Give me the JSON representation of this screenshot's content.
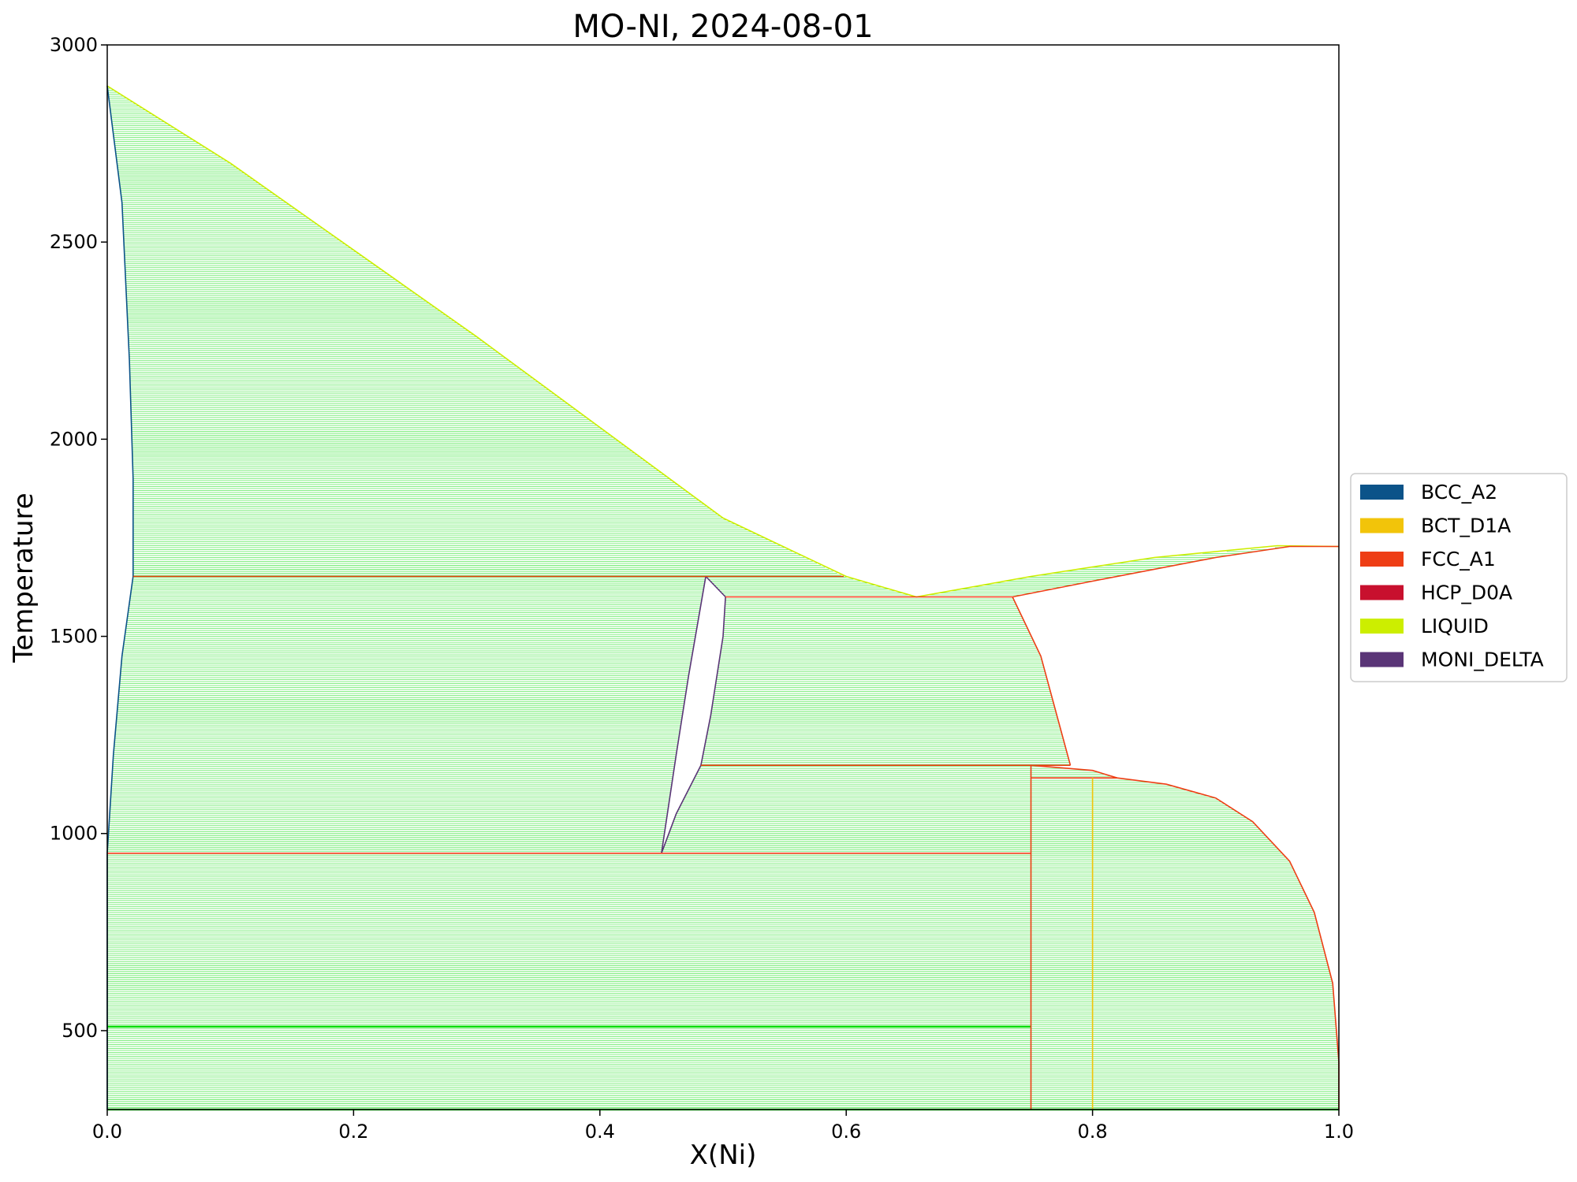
{
  "chart_data": {
    "type": "line",
    "title": "MO-NI, 2024-08-01",
    "xlabel": "X(Ni)",
    "ylabel": "Temperature",
    "xlim": [
      0.0,
      1.0
    ],
    "ylim": [
      300,
      3000
    ],
    "xticks": [
      0.0,
      0.2,
      0.4,
      0.6,
      0.8,
      1.0
    ],
    "xtick_labels": [
      "0.0",
      "0.2",
      "0.4",
      "0.6",
      "0.8",
      "1.0"
    ],
    "yticks": [
      500,
      1000,
      1500,
      2000,
      2500,
      3000
    ],
    "ytick_labels": [
      "500",
      "1000",
      "1500",
      "2000",
      "2500",
      "3000"
    ],
    "grid": false,
    "legend_position": "center-right, outside plot",
    "legend": [
      {
        "name": "BCC_A2",
        "color": "#0b5389"
      },
      {
        "name": "BCT_D1A",
        "color": "#f2c40a"
      },
      {
        "name": "FCC_A1",
        "color": "#ee3e15"
      },
      {
        "name": "HCP_D0A",
        "color": "#c8102e"
      },
      {
        "name": "LIQUID",
        "color": "#ccee00"
      },
      {
        "name": "MONI_DELTA",
        "color": "#5a3577"
      }
    ],
    "tieline_color": "#00dd00",
    "boundaries": [
      {
        "phase": "LIQUID",
        "color": "#ccee00",
        "points": [
          [
            0.0,
            2896
          ],
          [
            0.1,
            2700
          ],
          [
            0.2,
            2480
          ],
          [
            0.3,
            2260
          ],
          [
            0.4,
            2030
          ],
          [
            0.5,
            1800
          ],
          [
            0.6,
            1652
          ],
          [
            0.657,
            1600
          ],
          [
            0.75,
            1652
          ],
          [
            0.85,
            1700
          ],
          [
            0.95,
            1730
          ],
          [
            1.0,
            1728
          ]
        ]
      },
      {
        "phase": "BCC_A2",
        "color": "#0b5389",
        "points": [
          [
            0.0,
            2896
          ],
          [
            0.012,
            2600
          ],
          [
            0.018,
            2200
          ],
          [
            0.021,
            1900
          ],
          [
            0.021,
            1652
          ],
          [
            0.012,
            1450
          ],
          [
            0.005,
            1200
          ],
          [
            0.0,
            950
          ],
          [
            0.0,
            300
          ]
        ]
      },
      {
        "phase": "FCC_A1",
        "color": "#ee3e15",
        "points": [
          [
            0.735,
            1600
          ],
          [
            0.758,
            1450
          ],
          [
            0.782,
            1173
          ]
        ]
      },
      {
        "phase": "FCC_A1",
        "color": "#ee3e15",
        "points": [
          [
            0.735,
            1600
          ],
          [
            0.8,
            1640
          ],
          [
            0.9,
            1700
          ],
          [
            0.96,
            1728
          ],
          [
            1.0,
            1728
          ]
        ]
      },
      {
        "phase": "FCC_A1",
        "color": "#ee3e15",
        "points": [
          [
            0.75,
            1173
          ],
          [
            0.8,
            1160
          ],
          [
            0.82,
            1141
          ],
          [
            0.86,
            1125
          ],
          [
            0.9,
            1090
          ],
          [
            0.93,
            1030
          ],
          [
            0.96,
            930
          ],
          [
            0.98,
            800
          ],
          [
            0.995,
            620
          ],
          [
            1.0,
            420
          ],
          [
            1.0,
            300
          ]
        ]
      },
      {
        "phase": "MONI_DELTA",
        "color": "#5a3577",
        "points": [
          [
            0.486,
            1652
          ],
          [
            0.502,
            1600
          ],
          [
            0.5,
            1500
          ],
          [
            0.49,
            1300
          ],
          [
            0.482,
            1173
          ]
        ]
      },
      {
        "phase": "MONI_DELTA",
        "color": "#5a3577",
        "points": [
          [
            0.486,
            1652
          ],
          [
            0.472,
            1400
          ],
          [
            0.462,
            1200
          ],
          [
            0.45,
            950
          ]
        ]
      },
      {
        "phase": "MONI_DELTA",
        "color": "#5a3577",
        "points": [
          [
            0.45,
            950
          ],
          [
            0.462,
            1050
          ],
          [
            0.482,
            1173
          ]
        ]
      },
      {
        "phase": "FCC_A1",
        "color": "#ee3e15",
        "points": [
          [
            0.021,
            1652
          ],
          [
            0.598,
            1652
          ]
        ]
      },
      {
        "phase": "FCC_A1",
        "color": "#ee3e15",
        "points": [
          [
            0.502,
            1600
          ],
          [
            0.735,
            1600
          ]
        ]
      },
      {
        "phase": "FCC_A1",
        "color": "#ee3e15",
        "points": [
          [
            0.482,
            1173
          ],
          [
            0.782,
            1173
          ]
        ]
      },
      {
        "phase": "FCC_A1",
        "color": "#ee3e15",
        "points": [
          [
            0.75,
            1141
          ],
          [
            0.82,
            1141
          ]
        ]
      },
      {
        "phase": "FCC_A1",
        "color": "#ee3e15",
        "points": [
          [
            0.0,
            950
          ],
          [
            0.75,
            950
          ]
        ]
      },
      {
        "phase": "FCC_A1",
        "color": "#ee3e15",
        "points": [
          [
            0.75,
            300
          ],
          [
            0.75,
            1173
          ]
        ]
      },
      {
        "phase": "BCT_D1A",
        "color": "#f2c40a",
        "points": [
          [
            0.8,
            300
          ],
          [
            0.8,
            1141
          ]
        ]
      }
    ],
    "tieline_regions": [
      {
        "name": "bcc+liquid",
        "t_min": 1652,
        "t_max": 2896,
        "left": [
          [
            1652,
            0.021
          ],
          [
            1900,
            0.021
          ],
          [
            2200,
            0.018
          ],
          [
            2600,
            0.012
          ],
          [
            2896,
            0.0
          ]
        ],
        "right": [
          [
            1652,
            0.598
          ],
          [
            1800,
            0.5
          ],
          [
            2030,
            0.4
          ],
          [
            2260,
            0.3
          ],
          [
            2480,
            0.2
          ],
          [
            2700,
            0.1
          ],
          [
            2896,
            0.0
          ]
        ]
      },
      {
        "name": "bcc+delta upper",
        "t_min": 950,
        "t_max": 1652,
        "left": [
          [
            950,
            0.0
          ],
          [
            1200,
            0.005
          ],
          [
            1450,
            0.012
          ],
          [
            1652,
            0.021
          ]
        ],
        "right": [
          [
            950,
            0.45
          ],
          [
            1200,
            0.462
          ],
          [
            1400,
            0.472
          ],
          [
            1652,
            0.486
          ]
        ]
      },
      {
        "name": "bcc+delta lower",
        "t_min": 300,
        "t_max": 950,
        "left": [
          [
            300,
            0.0
          ],
          [
            950,
            0.0
          ]
        ],
        "right": [
          [
            300,
            0.75
          ],
          [
            950,
            0.75
          ]
        ]
      },
      {
        "name": "delta+liquid",
        "t_min": 1600,
        "t_max": 1652,
        "left": [
          [
            1600,
            0.502
          ],
          [
            1652,
            0.486
          ]
        ],
        "right": [
          [
            1600,
            0.657
          ],
          [
            1652,
            0.598
          ]
        ]
      },
      {
        "name": "delta+fcc",
        "t_min": 1173,
        "t_max": 1600,
        "left": [
          [
            1173,
            0.482
          ],
          [
            1300,
            0.49
          ],
          [
            1500,
            0.5
          ],
          [
            1600,
            0.502
          ]
        ],
        "right": [
          [
            1173,
            0.782
          ],
          [
            1450,
            0.758
          ],
          [
            1600,
            0.735
          ]
        ]
      },
      {
        "name": "liquid+fcc",
        "t_min": 1600,
        "t_max": 1728,
        "left": [
          [
            1600,
            0.657
          ],
          [
            1652,
            0.75
          ],
          [
            1700,
            0.85
          ],
          [
            1728,
            0.96
          ]
        ],
        "right": [
          [
            1600,
            0.735
          ],
          [
            1640,
            0.8
          ],
          [
            1700,
            0.9
          ],
          [
            1728,
            0.96
          ]
        ]
      },
      {
        "name": "delta+ni3mo",
        "t_min": 950,
        "t_max": 1173,
        "left": [
          [
            950,
            0.45
          ],
          [
            1050,
            0.462
          ],
          [
            1173,
            0.482
          ]
        ],
        "right": [
          [
            950,
            0.75
          ],
          [
            1173,
            0.75
          ]
        ]
      },
      {
        "name": "ni3mo+fcc upper",
        "t_min": 1141,
        "t_max": 1173,
        "left": [
          [
            1141,
            0.75
          ],
          [
            1173,
            0.75
          ]
        ],
        "right": [
          [
            1141,
            0.82
          ],
          [
            1160,
            0.8
          ],
          [
            1173,
            0.75
          ]
        ]
      },
      {
        "name": "ni4mo+fcc",
        "t_min": 300,
        "t_max": 1141,
        "left": [
          [
            300,
            0.75
          ],
          [
            1141,
            0.75
          ]
        ],
        "right": [
          [
            300,
            1.0
          ],
          [
            420,
            1.0
          ],
          [
            620,
            0.995
          ],
          [
            800,
            0.98
          ],
          [
            930,
            0.96
          ],
          [
            1030,
            0.93
          ],
          [
            1090,
            0.9
          ],
          [
            1125,
            0.86
          ],
          [
            1141,
            0.82
          ]
        ]
      }
    ]
  }
}
